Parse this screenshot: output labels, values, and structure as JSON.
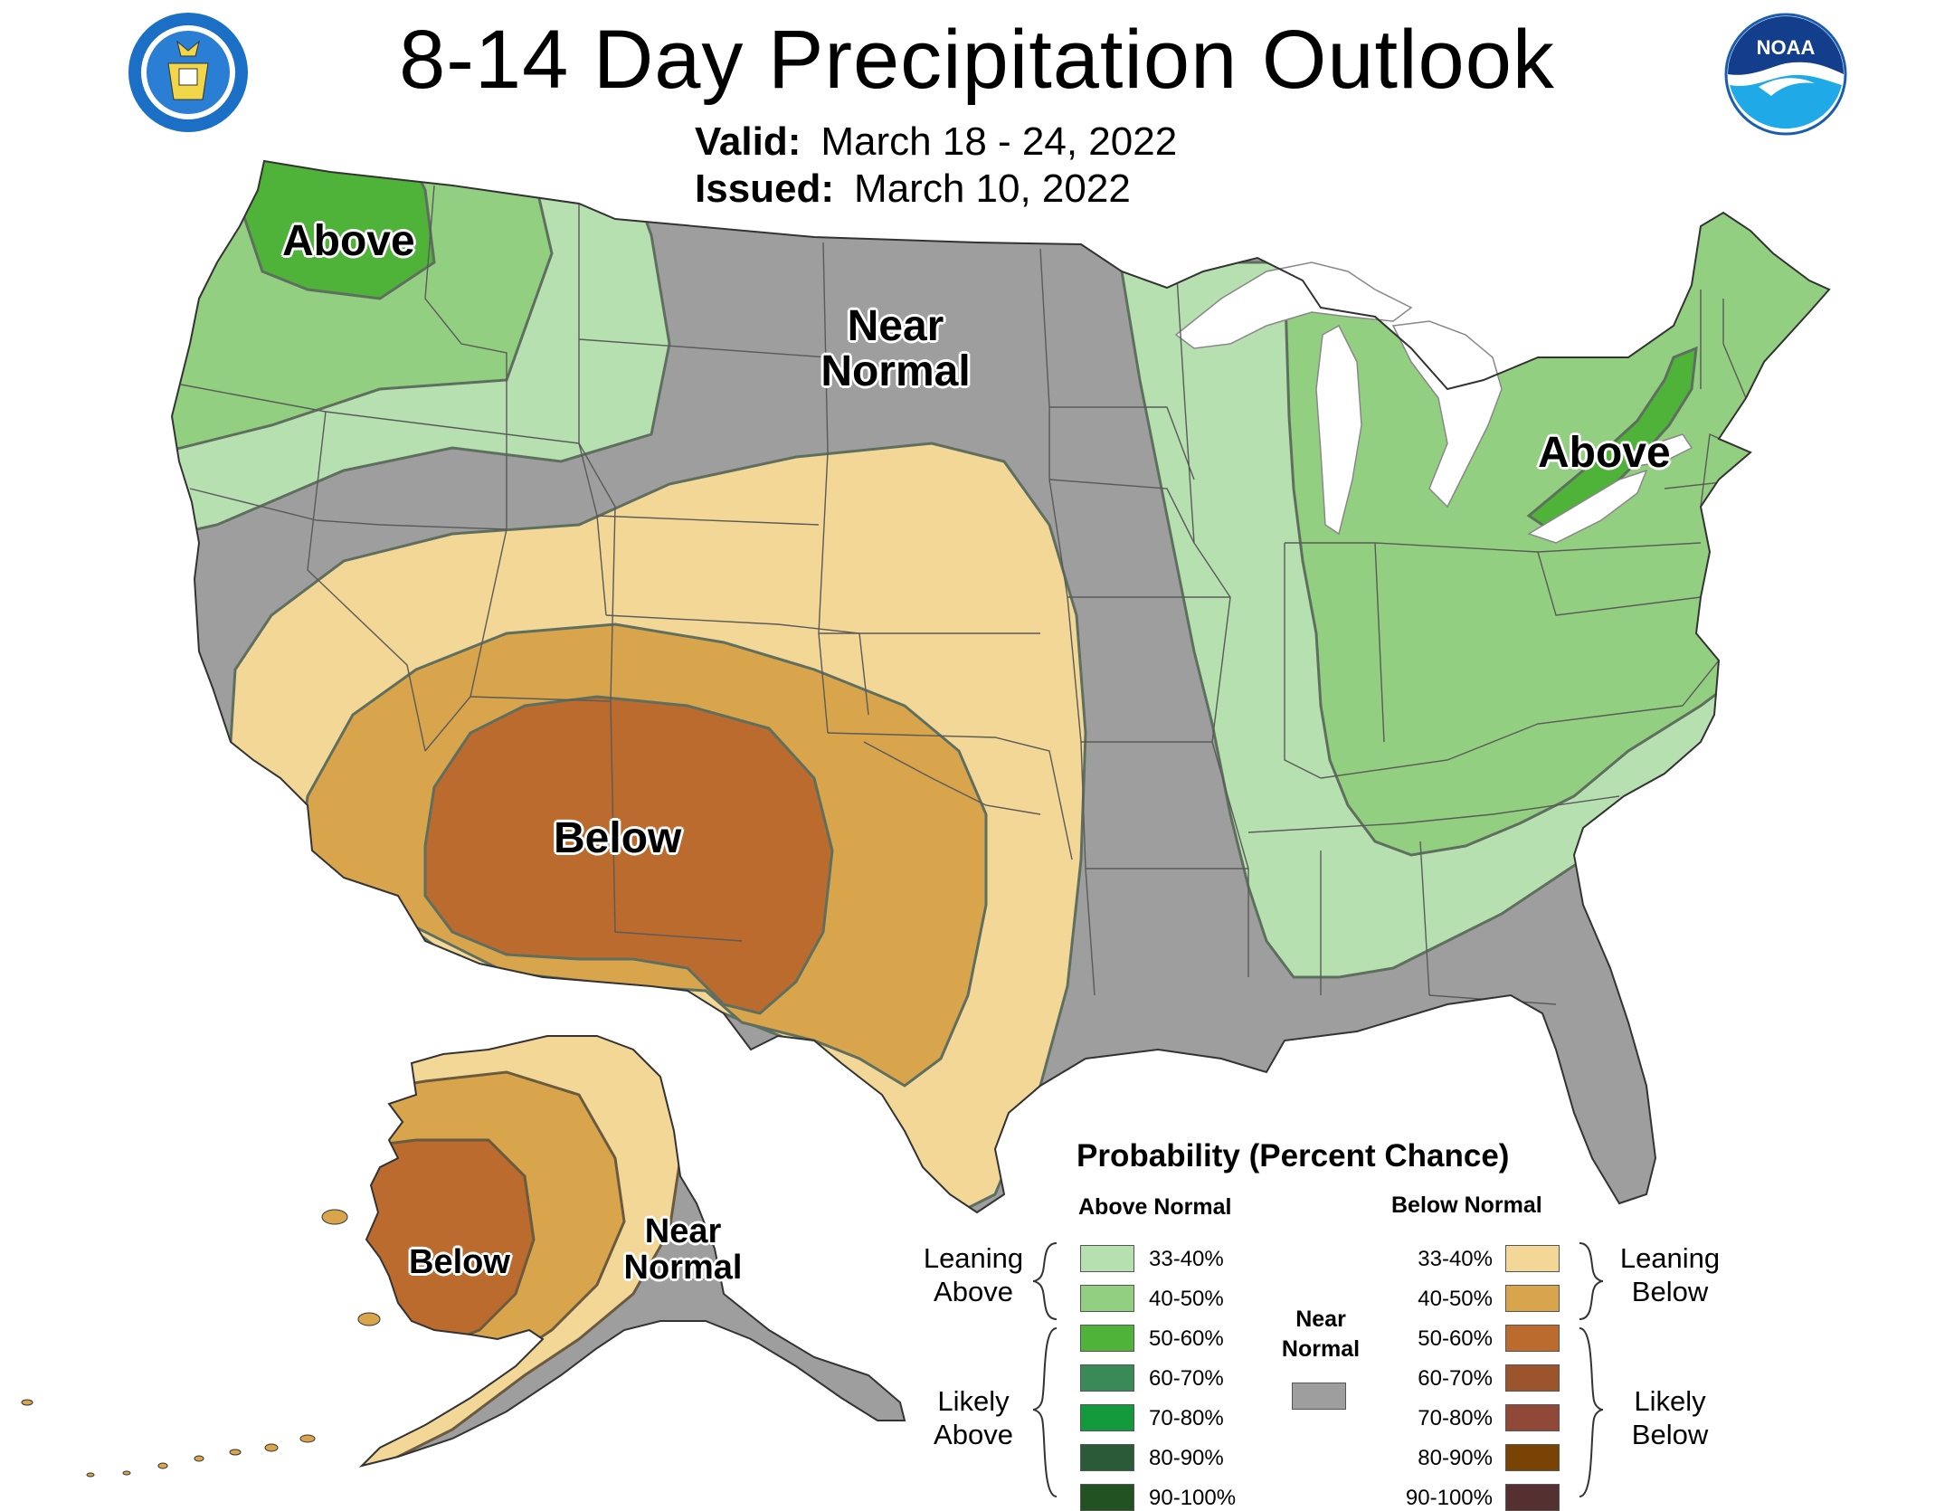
{
  "title": "8-14 Day Precipitation Outlook",
  "valid_label": "Valid:",
  "valid_dates": "March 18 - 24, 2022",
  "issued_label": "Issued:",
  "issued_date": "March 10, 2022",
  "regions": {
    "northwest": "Above",
    "northern_plains": "Near Normal",
    "southwest": "Below",
    "northeast": "Above",
    "alaska_west": "Below",
    "alaska_southeast": "Near Normal"
  },
  "logos": {
    "left": "department-of-commerce-seal",
    "left_text": "DEPARTMENT OF COMMERCE · UNITED STATES OF AMERICA",
    "right": "noaa-logo",
    "right_text": "NOAA"
  },
  "legend": {
    "title": "Probability (Percent Chance)",
    "above_header": "Above Normal",
    "below_header": "Below Normal",
    "near_normal": "Near Normal",
    "near_normal_color": "#9e9e9e",
    "leaning_above": "Leaning Above",
    "likely_above": "Likely Above",
    "leaning_below": "Leaning Below",
    "likely_below": "Likely Below",
    "above": [
      {
        "range": "33-40%",
        "color": "#b6e0b0"
      },
      {
        "range": "40-50%",
        "color": "#93cf80"
      },
      {
        "range": "50-60%",
        "color": "#4fb33a"
      },
      {
        "range": "60-70%",
        "color": "#3a8a58"
      },
      {
        "range": "70-80%",
        "color": "#139a3c"
      },
      {
        "range": "80-90%",
        "color": "#2a5a38"
      },
      {
        "range": "90-100%",
        "color": "#225222"
      }
    ],
    "below": [
      {
        "range": "33-40%",
        "color": "#f2d796"
      },
      {
        "range": "40-50%",
        "color": "#d9a54c"
      },
      {
        "range": "50-60%",
        "color": "#bb6b2e"
      },
      {
        "range": "60-70%",
        "color": "#9c542c"
      },
      {
        "range": "70-80%",
        "color": "#904838"
      },
      {
        "range": "80-90%",
        "color": "#7a4306"
      },
      {
        "range": "90-100%",
        "color": "#553030"
      }
    ]
  }
}
